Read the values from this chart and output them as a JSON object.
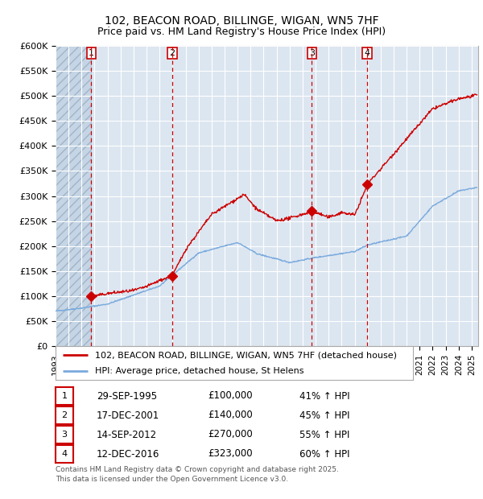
{
  "title_line1": "102, BEACON ROAD, BILLINGE, WIGAN, WN5 7HF",
  "title_line2": "Price paid vs. HM Land Registry's House Price Index (HPI)",
  "ylim": [
    0,
    600000
  ],
  "yticks": [
    0,
    50000,
    100000,
    150000,
    200000,
    250000,
    300000,
    350000,
    400000,
    450000,
    500000,
    550000,
    600000
  ],
  "ytick_labels": [
    "£0",
    "£50K",
    "£100K",
    "£150K",
    "£200K",
    "£250K",
    "£300K",
    "£350K",
    "£400K",
    "£450K",
    "£500K",
    "£550K",
    "£600K"
  ],
  "xlim_start": 1993.0,
  "xlim_end": 2025.5,
  "purchases": [
    {
      "year": 1995.75,
      "price": 100000,
      "label": "1"
    },
    {
      "year": 2001.96,
      "price": 140000,
      "label": "2"
    },
    {
      "year": 2012.71,
      "price": 270000,
      "label": "3"
    },
    {
      "year": 2016.96,
      "price": 323000,
      "label": "4"
    }
  ],
  "purchase_color": "#cc0000",
  "hpi_color": "#7aaadd",
  "legend_line1": "102, BEACON ROAD, BILLINGE, WIGAN, WN5 7HF (detached house)",
  "legend_line2": "HPI: Average price, detached house, St Helens",
  "table_entries": [
    {
      "num": "1",
      "date": "29-SEP-1995",
      "price": "£100,000",
      "hpi": "41% ↑ HPI"
    },
    {
      "num": "2",
      "date": "17-DEC-2001",
      "price": "£140,000",
      "hpi": "45% ↑ HPI"
    },
    {
      "num": "3",
      "date": "14-SEP-2012",
      "price": "£270,000",
      "hpi": "55% ↑ HPI"
    },
    {
      "num": "4",
      "date": "12-DEC-2016",
      "price": "£323,000",
      "hpi": "60% ↑ HPI"
    }
  ],
  "footer": "Contains HM Land Registry data © Crown copyright and database right 2025.\nThis data is licensed under the Open Government Licence v3.0.",
  "bg_color": "#dce6f1",
  "grid_color": "#ffffff",
  "vline_color": "#cc0000",
  "hatch_region_end": 1995.75
}
